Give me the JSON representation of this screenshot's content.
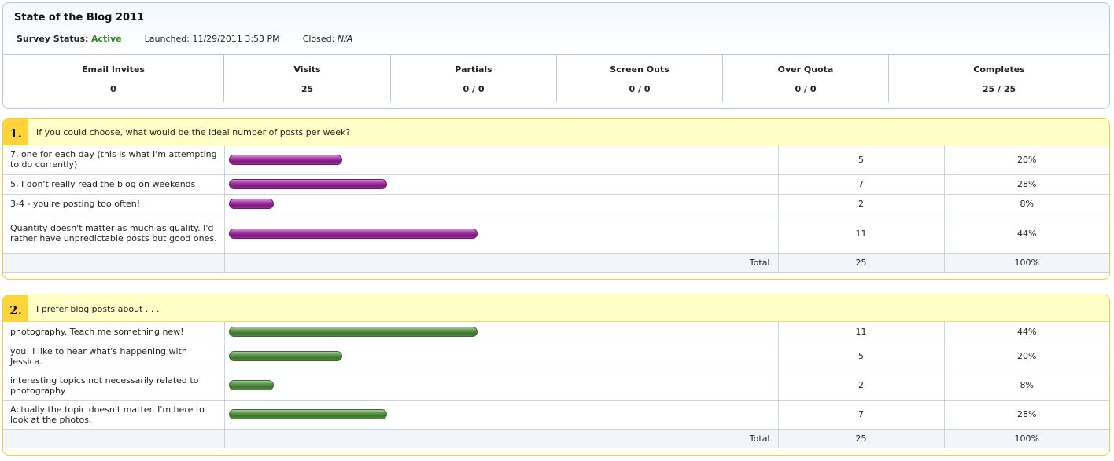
{
  "survey": {
    "title": "State of the Blog 2011",
    "status_label": "Survey Status:",
    "status_value": "Active",
    "launched_label": "Launched:",
    "launched_value": "11/29/2011 3:53 PM",
    "closed_label": "Closed:",
    "closed_value": "N/A"
  },
  "stats": [
    {
      "label": "Email Invites",
      "value": "0"
    },
    {
      "label": "Visits",
      "value": "25"
    },
    {
      "label": "Partials",
      "value": "0 / 0"
    },
    {
      "label": "Screen Outs",
      "value": "0 / 0"
    },
    {
      "label": "Over Quota",
      "value": "0 / 0"
    },
    {
      "label": "Completes",
      "value": "25 / 25"
    }
  ],
  "colors": {
    "q1_bar": "#8b248b",
    "q2_bar": "#4b8040",
    "active_status": "#2e8b1e",
    "question_badge": "#fdd53a"
  },
  "questions": [
    {
      "number": "1.",
      "text": "If you could choose, what would be the ideal number of posts per week?",
      "bar_color": "purple",
      "answers": [
        {
          "label": "7, one for each day (this is what I'm attempting to do currently)",
          "count": "5",
          "percent": "20%",
          "fraction": 0.2
        },
        {
          "label": "5, I don't really read the blog on weekends",
          "count": "7",
          "percent": "28%",
          "fraction": 0.28
        },
        {
          "label": "3-4 - you're posting too often!",
          "count": "2",
          "percent": "8%",
          "fraction": 0.08
        },
        {
          "label": "Quantity doesn't matter as much as quality. I'd rather have unpredictable posts but good ones.",
          "count": "11",
          "percent": "44%",
          "fraction": 0.44
        }
      ],
      "total_label": "Total",
      "total_count": "25",
      "total_percent": "100%"
    },
    {
      "number": "2.",
      "text": "I prefer blog posts about . . .",
      "bar_color": "green",
      "answers": [
        {
          "label": "photography. Teach me something new!",
          "count": "11",
          "percent": "44%",
          "fraction": 0.44
        },
        {
          "label": "you! I like to hear what's happening with Jessica.",
          "count": "5",
          "percent": "20%",
          "fraction": 0.2
        },
        {
          "label": "interesting topics not necessarily related to photography",
          "count": "2",
          "percent": "8%",
          "fraction": 0.08
        },
        {
          "label": "Actually the topic doesn't matter. I'm here to look at the photos.",
          "count": "7",
          "percent": "28%",
          "fraction": 0.28
        }
      ],
      "total_label": "Total",
      "total_count": "25",
      "total_percent": "100%"
    }
  ]
}
